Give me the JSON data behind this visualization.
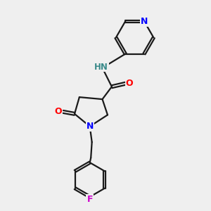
{
  "background_color": "#efefef",
  "bond_color": "#1a1a1a",
  "N_color": "#0000ff",
  "O_color": "#ff0000",
  "F_color": "#cc00cc",
  "H_color": "#3a8a8a",
  "line_width": 1.6,
  "figsize": [
    3.0,
    3.0
  ],
  "dpi": 100,
  "xlim": [
    0,
    10
  ],
  "ylim": [
    0,
    10
  ]
}
